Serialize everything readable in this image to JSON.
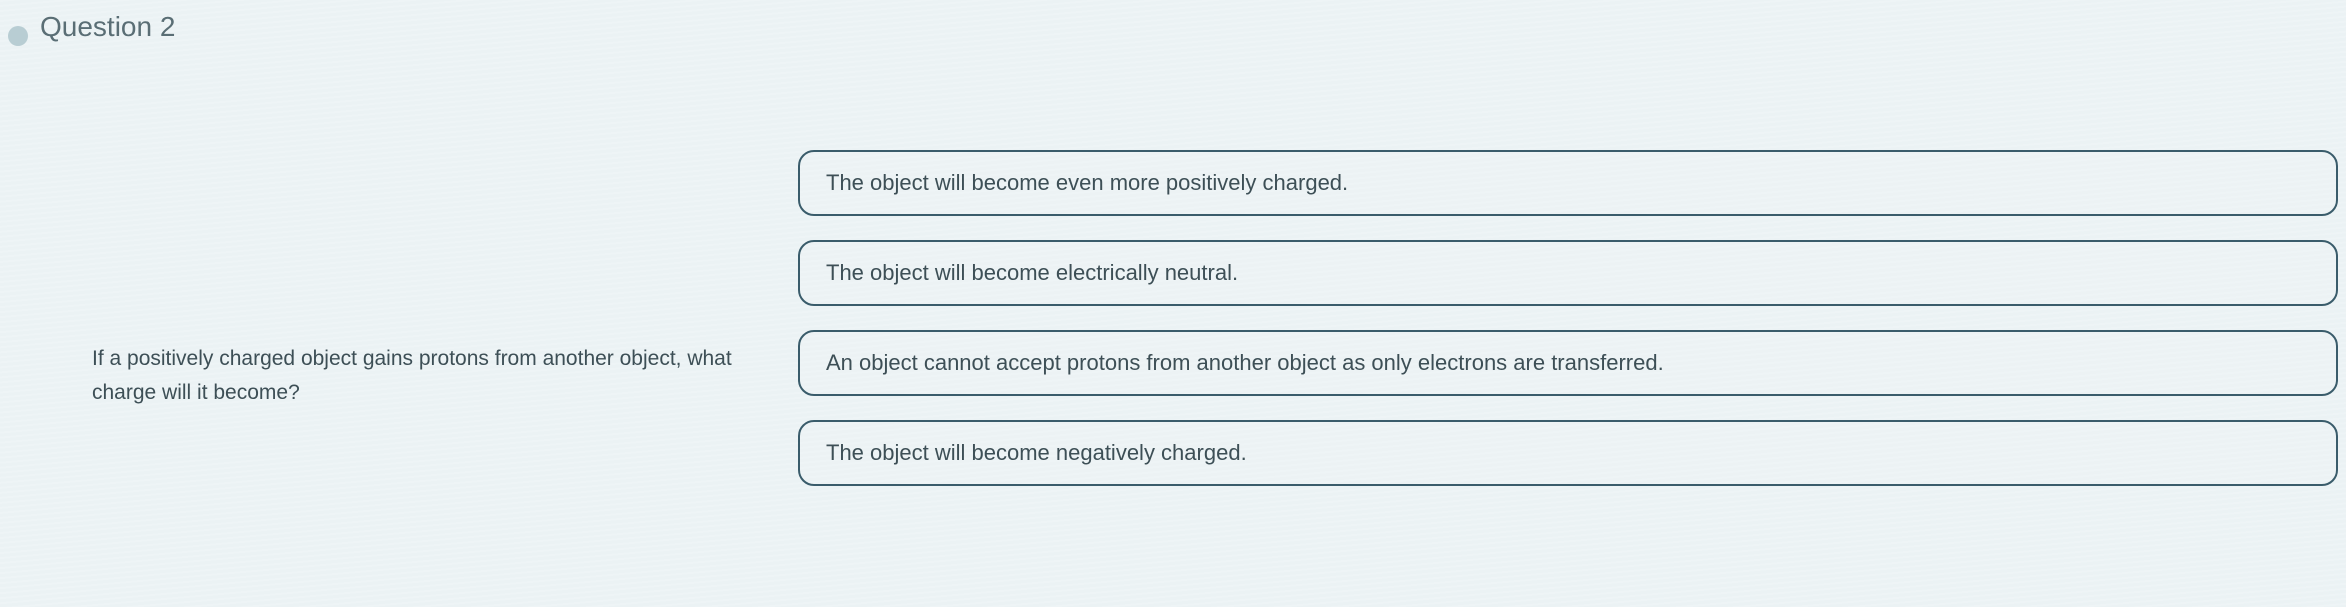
{
  "question": {
    "number_label": "Question 2",
    "prompt": "If a positively charged object gains protons from another object, what charge will it become?",
    "options": [
      "The object will become even more positively charged.",
      "The object will become electrically neutral.",
      "An object cannot accept protons from another object as only electrons are transferred.",
      "The object will become negatively charged."
    ]
  },
  "styling": {
    "background_color": "#ebf2f4",
    "title_color": "#5a6e75",
    "text_color": "#3d4f56",
    "option_border_color": "#3a5c6b",
    "option_border_radius": 16,
    "title_fontsize": 28,
    "prompt_fontsize": 21,
    "option_fontsize": 22
  }
}
